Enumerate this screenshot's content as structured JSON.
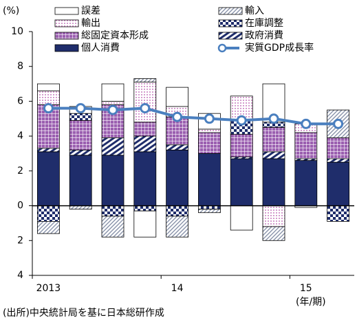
{
  "chart_data": {
    "type": "bar",
    "stacked": true,
    "y_label": "(%)",
    "x_label": "(年/期)",
    "source": "(出所)中央統計局を基に日本総研作成",
    "categories": [
      "2013",
      null,
      null,
      null,
      "14",
      null,
      null,
      null,
      "15",
      null
    ],
    "ylim": [
      -4,
      10
    ],
    "yticks": [
      {
        "value": -4,
        "label": "4"
      },
      {
        "value": -2,
        "label": "2"
      },
      0,
      2,
      4,
      6,
      8,
      10
    ],
    "series": [
      {
        "name": "個人消費",
        "color": "#1f2d6b",
        "pattern": "solid",
        "values": [
          3.1,
          2.9,
          2.9,
          3.1,
          3.2,
          3.0,
          2.7,
          2.7,
          2.6,
          2.5
        ]
      },
      {
        "name": "政府消費",
        "color": "#1f2d6b",
        "pattern": "stripes",
        "values": [
          0.2,
          0.3,
          1.0,
          0.9,
          0.3,
          0,
          0.1,
          0.4,
          0.1,
          0.2
        ]
      },
      {
        "name": "総固定資本形成",
        "color": "#9b5fb0",
        "pattern": "grid",
        "values": [
          2.5,
          1.7,
          1.9,
          0.8,
          1.6,
          1.2,
          1.3,
          1.4,
          1.5,
          1.2
        ]
      },
      {
        "name": "在庫調整",
        "color": "#1f2d6b",
        "pattern": "checker",
        "values": [
          -0.9,
          0.4,
          -0.6,
          -0.3,
          -0.6,
          -0.2,
          0.8,
          0.3,
          0,
          -0.9
        ]
      },
      {
        "name": "輸出",
        "color": "#c77bbf",
        "pattern": "dots",
        "values": [
          0.8,
          0,
          0.2,
          2.3,
          0.6,
          0.2,
          1.4,
          -1.2,
          0.5,
          0
        ]
      },
      {
        "name": "輸入",
        "color": "#7f8aa3",
        "pattern": "hatch",
        "values": [
          -0.7,
          -0.2,
          -1.2,
          0.2,
          -1.2,
          -0.2,
          0,
          -0.8,
          0,
          1.6
        ]
      },
      {
        "name": "誤差",
        "color": "#ffffff",
        "pattern": "solid",
        "values": [
          0.4,
          0.4,
          1.0,
          -1.5,
          1.1,
          0.9,
          -1.4,
          2.2,
          -0.1,
          0
        ]
      },
      {
        "name": "実質GDP成長率",
        "color": "#4a7fbf",
        "type": "line",
        "values": [
          5.6,
          5.6,
          5.5,
          5.6,
          5.1,
          5.0,
          4.9,
          5.0,
          4.7,
          4.7
        ]
      }
    ]
  }
}
